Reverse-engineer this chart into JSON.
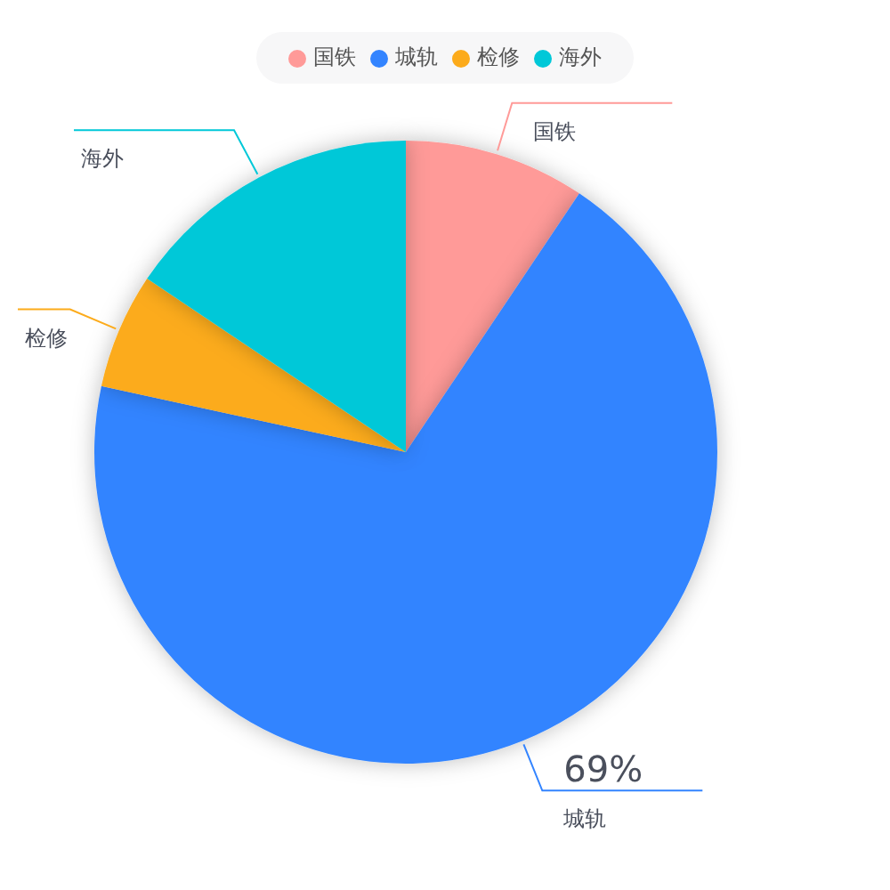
{
  "chart_data": {
    "type": "pie",
    "categories": [
      "国铁",
      "城轨",
      "检修",
      "海外"
    ],
    "values": [
      9.4,
      69,
      6,
      15.6
    ],
    "colors": [
      "#ff9a98",
      "#3384ff",
      "#fcab1b",
      "#00c8d8"
    ],
    "value_labels": [
      null,
      "69%",
      null,
      null
    ],
    "legend": "top"
  }
}
